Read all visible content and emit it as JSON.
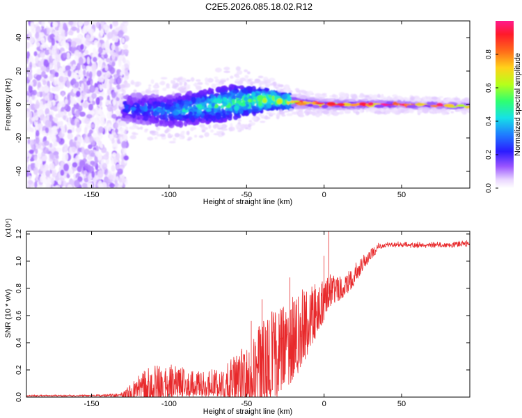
{
  "title": "C2E5.2026.085.18.02.R12",
  "colors": {
    "snr_line": "#e8292b",
    "axis": "#000000",
    "background": "#ffffff",
    "colormap": [
      "#ffffff",
      "#e9d6ff",
      "#b98cff",
      "#7a26ff",
      "#2a1cff",
      "#1f7dff",
      "#16e1e6",
      "#2fff70",
      "#b6ff1a",
      "#ffd21a",
      "#ff6a1a",
      "#ff1a2a",
      "#ff1a8c"
    ]
  },
  "chart_data": [
    {
      "type": "heatmap",
      "title": "",
      "xlabel": "Height of straight line (km)",
      "ylabel": "Frequency (Hz)",
      "xlim": [
        -192,
        94
      ],
      "ylim": [
        -50,
        50
      ],
      "x_ticks": [
        -150,
        -100,
        -50,
        0,
        50
      ],
      "x_tick_labels": [
        "-150",
        "-100",
        "-50",
        "0",
        "50"
      ],
      "y_ticks": [
        -40,
        -20,
        0,
        20,
        40
      ],
      "y_tick_labels": [
        "-40",
        "-20",
        "0",
        "20",
        "40"
      ],
      "colorbar": {
        "label": "Normalized spectral amplitude",
        "range": [
          0,
          1
        ],
        "ticks": [
          0.0,
          0.2,
          0.4,
          0.6,
          0.8
        ],
        "tick_labels": [
          "0.0",
          "0.2",
          "0.4",
          "0.6",
          "0.8"
        ]
      },
      "description_features": {
        "noise_region_x": [
          -192,
          -127
        ],
        "signal_band_center_hz": [
          [
            -130,
            -2
          ],
          [
            -100,
            -4
          ],
          [
            -50,
            2
          ],
          [
            -35,
            3
          ],
          [
            0,
            0
          ],
          [
            50,
            0
          ],
          [
            94,
            -1
          ]
        ],
        "signal_band_halfwidth_hz": [
          [
            -130,
            8
          ],
          [
            -60,
            10
          ],
          [
            -35,
            6
          ],
          [
            -20,
            4
          ],
          [
            0,
            3
          ],
          [
            94,
            2
          ]
        ]
      }
    },
    {
      "type": "line",
      "title": "",
      "xlabel": "Height of straight line (km)",
      "ylabel": "SNR (10 * v/v)",
      "multiplier_label": "(x10⁴)",
      "xlim": [
        -192,
        94
      ],
      "ylim": [
        0,
        1.22
      ],
      "x_ticks": [
        -150,
        -100,
        -50,
        0,
        50
      ],
      "x_tick_labels": [
        "-150",
        "-100",
        "-50",
        "0",
        "50"
      ],
      "y_ticks": [
        0.0,
        0.2,
        0.4,
        0.6,
        0.8,
        1.0,
        1.2
      ],
      "y_tick_labels": [
        "0.0",
        "0.2",
        "0.4",
        "0.6",
        "0.8",
        "1.0",
        "1.2"
      ],
      "series": [
        {
          "name": "SNR",
          "x": [
            -192,
            -170,
            -150,
            -130,
            -125,
            -120,
            -115,
            -110,
            -105,
            -100,
            -95,
            -90,
            -85,
            -80,
            -75,
            -70,
            -65,
            -60,
            -55,
            -50,
            -45,
            -40,
            -35,
            -30,
            -25,
            -20,
            -15,
            -10,
            -5,
            0,
            3,
            5,
            10,
            15,
            20,
            25,
            30,
            35,
            40,
            50,
            60,
            70,
            80,
            94
          ],
          "base": [
            0.01,
            0.01,
            0.01,
            0.015,
            0.03,
            0.06,
            0.08,
            0.09,
            0.1,
            0.1,
            0.1,
            0.1,
            0.09,
            0.09,
            0.09,
            0.1,
            0.1,
            0.11,
            0.13,
            0.16,
            0.2,
            0.23,
            0.26,
            0.3,
            0.34,
            0.4,
            0.47,
            0.55,
            0.62,
            0.7,
            0.76,
            0.78,
            0.8,
            0.84,
            0.9,
            0.98,
            1.05,
            1.1,
            1.12,
            1.12,
            1.12,
            1.12,
            1.12,
            1.13
          ],
          "amp": [
            0.008,
            0.008,
            0.008,
            0.02,
            0.05,
            0.08,
            0.11,
            0.12,
            0.12,
            0.12,
            0.11,
            0.1,
            0.09,
            0.09,
            0.09,
            0.1,
            0.12,
            0.14,
            0.18,
            0.22,
            0.25,
            0.28,
            0.3,
            0.3,
            0.3,
            0.29,
            0.27,
            0.22,
            0.18,
            0.14,
            0.12,
            0.1,
            0.09,
            0.08,
            0.07,
            0.05,
            0.04,
            0.03,
            0.025,
            0.025,
            0.025,
            0.025,
            0.025,
            0.03
          ],
          "spikes": [
            [
              3,
              1.22
            ],
            [
              0,
              1.04
            ],
            [
              -22,
              0.88
            ],
            [
              -20,
              0.58
            ],
            [
              -40,
              0.72
            ],
            [
              -47,
              0.56
            ]
          ]
        }
      ]
    }
  ]
}
